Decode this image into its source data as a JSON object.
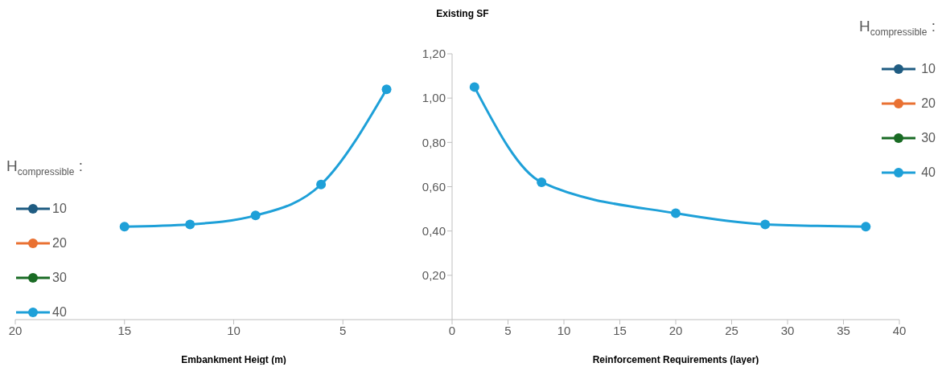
{
  "chart_data": [
    {
      "type": "line",
      "xlabel": "Embankment Heigt (m)",
      "legend_title": "H$_{compressible}$ :",
      "x": [
        15,
        12,
        9,
        6,
        3
      ],
      "series": [
        {
          "name": "10",
          "color": "#1f5c82",
          "values": [
            null,
            null,
            null,
            null,
            null
          ]
        },
        {
          "name": "20",
          "color": "#e97132",
          "values": [
            null,
            null,
            null,
            null,
            null
          ]
        },
        {
          "name": "30",
          "color": "#196b24",
          "values": [
            null,
            null,
            null,
            null,
            null
          ]
        },
        {
          "name": "40",
          "color": "#1ea0d8",
          "values": [
            0.42,
            0.43,
            0.47,
            0.61,
            1.04
          ]
        }
      ],
      "xlim": [
        20,
        0
      ],
      "xticks": [
        20,
        15,
        10,
        5
      ],
      "ylim": [
        0,
        1.2
      ],
      "tick_labels": "x",
      "grid": false,
      "legend": "left",
      "marker": "circle",
      "line_style": "solid"
    },
    {
      "type": "line",
      "title": "Existing SF",
      "xlabel": "Reinforcement Requirements (layer)",
      "legend_title": "H$_{compressible}$ :",
      "x": [
        2,
        8,
        20,
        28,
        37
      ],
      "series": [
        {
          "name": "10",
          "color": "#1f5c82",
          "values": [
            null,
            null,
            null,
            null,
            null
          ]
        },
        {
          "name": "20",
          "color": "#e97132",
          "values": [
            null,
            null,
            null,
            null,
            null
          ]
        },
        {
          "name": "30",
          "color": "#196b24",
          "values": [
            null,
            null,
            null,
            null,
            null
          ]
        },
        {
          "name": "40",
          "color": "#1ea0d8",
          "values": [
            1.05,
            0.62,
            0.48,
            0.43,
            0.42
          ]
        }
      ],
      "xlim": [
        0,
        40
      ],
      "xticks": [
        0,
        5,
        10,
        15,
        20,
        25,
        30,
        35,
        40
      ],
      "ylim": [
        0,
        1.2
      ],
      "yticks": [
        {
          "value": 0.2,
          "label": "0,20"
        },
        {
          "value": 0.4,
          "label": "0,40"
        },
        {
          "value": 0.6,
          "label": "0,60"
        },
        {
          "value": 0.8,
          "label": "0,80"
        },
        {
          "value": 1.0,
          "label": "1,00"
        },
        {
          "value": 1.2,
          "label": "1,20"
        }
      ],
      "grid": false,
      "legend": "top right",
      "marker": "circle",
      "line_style": "solid"
    }
  ]
}
